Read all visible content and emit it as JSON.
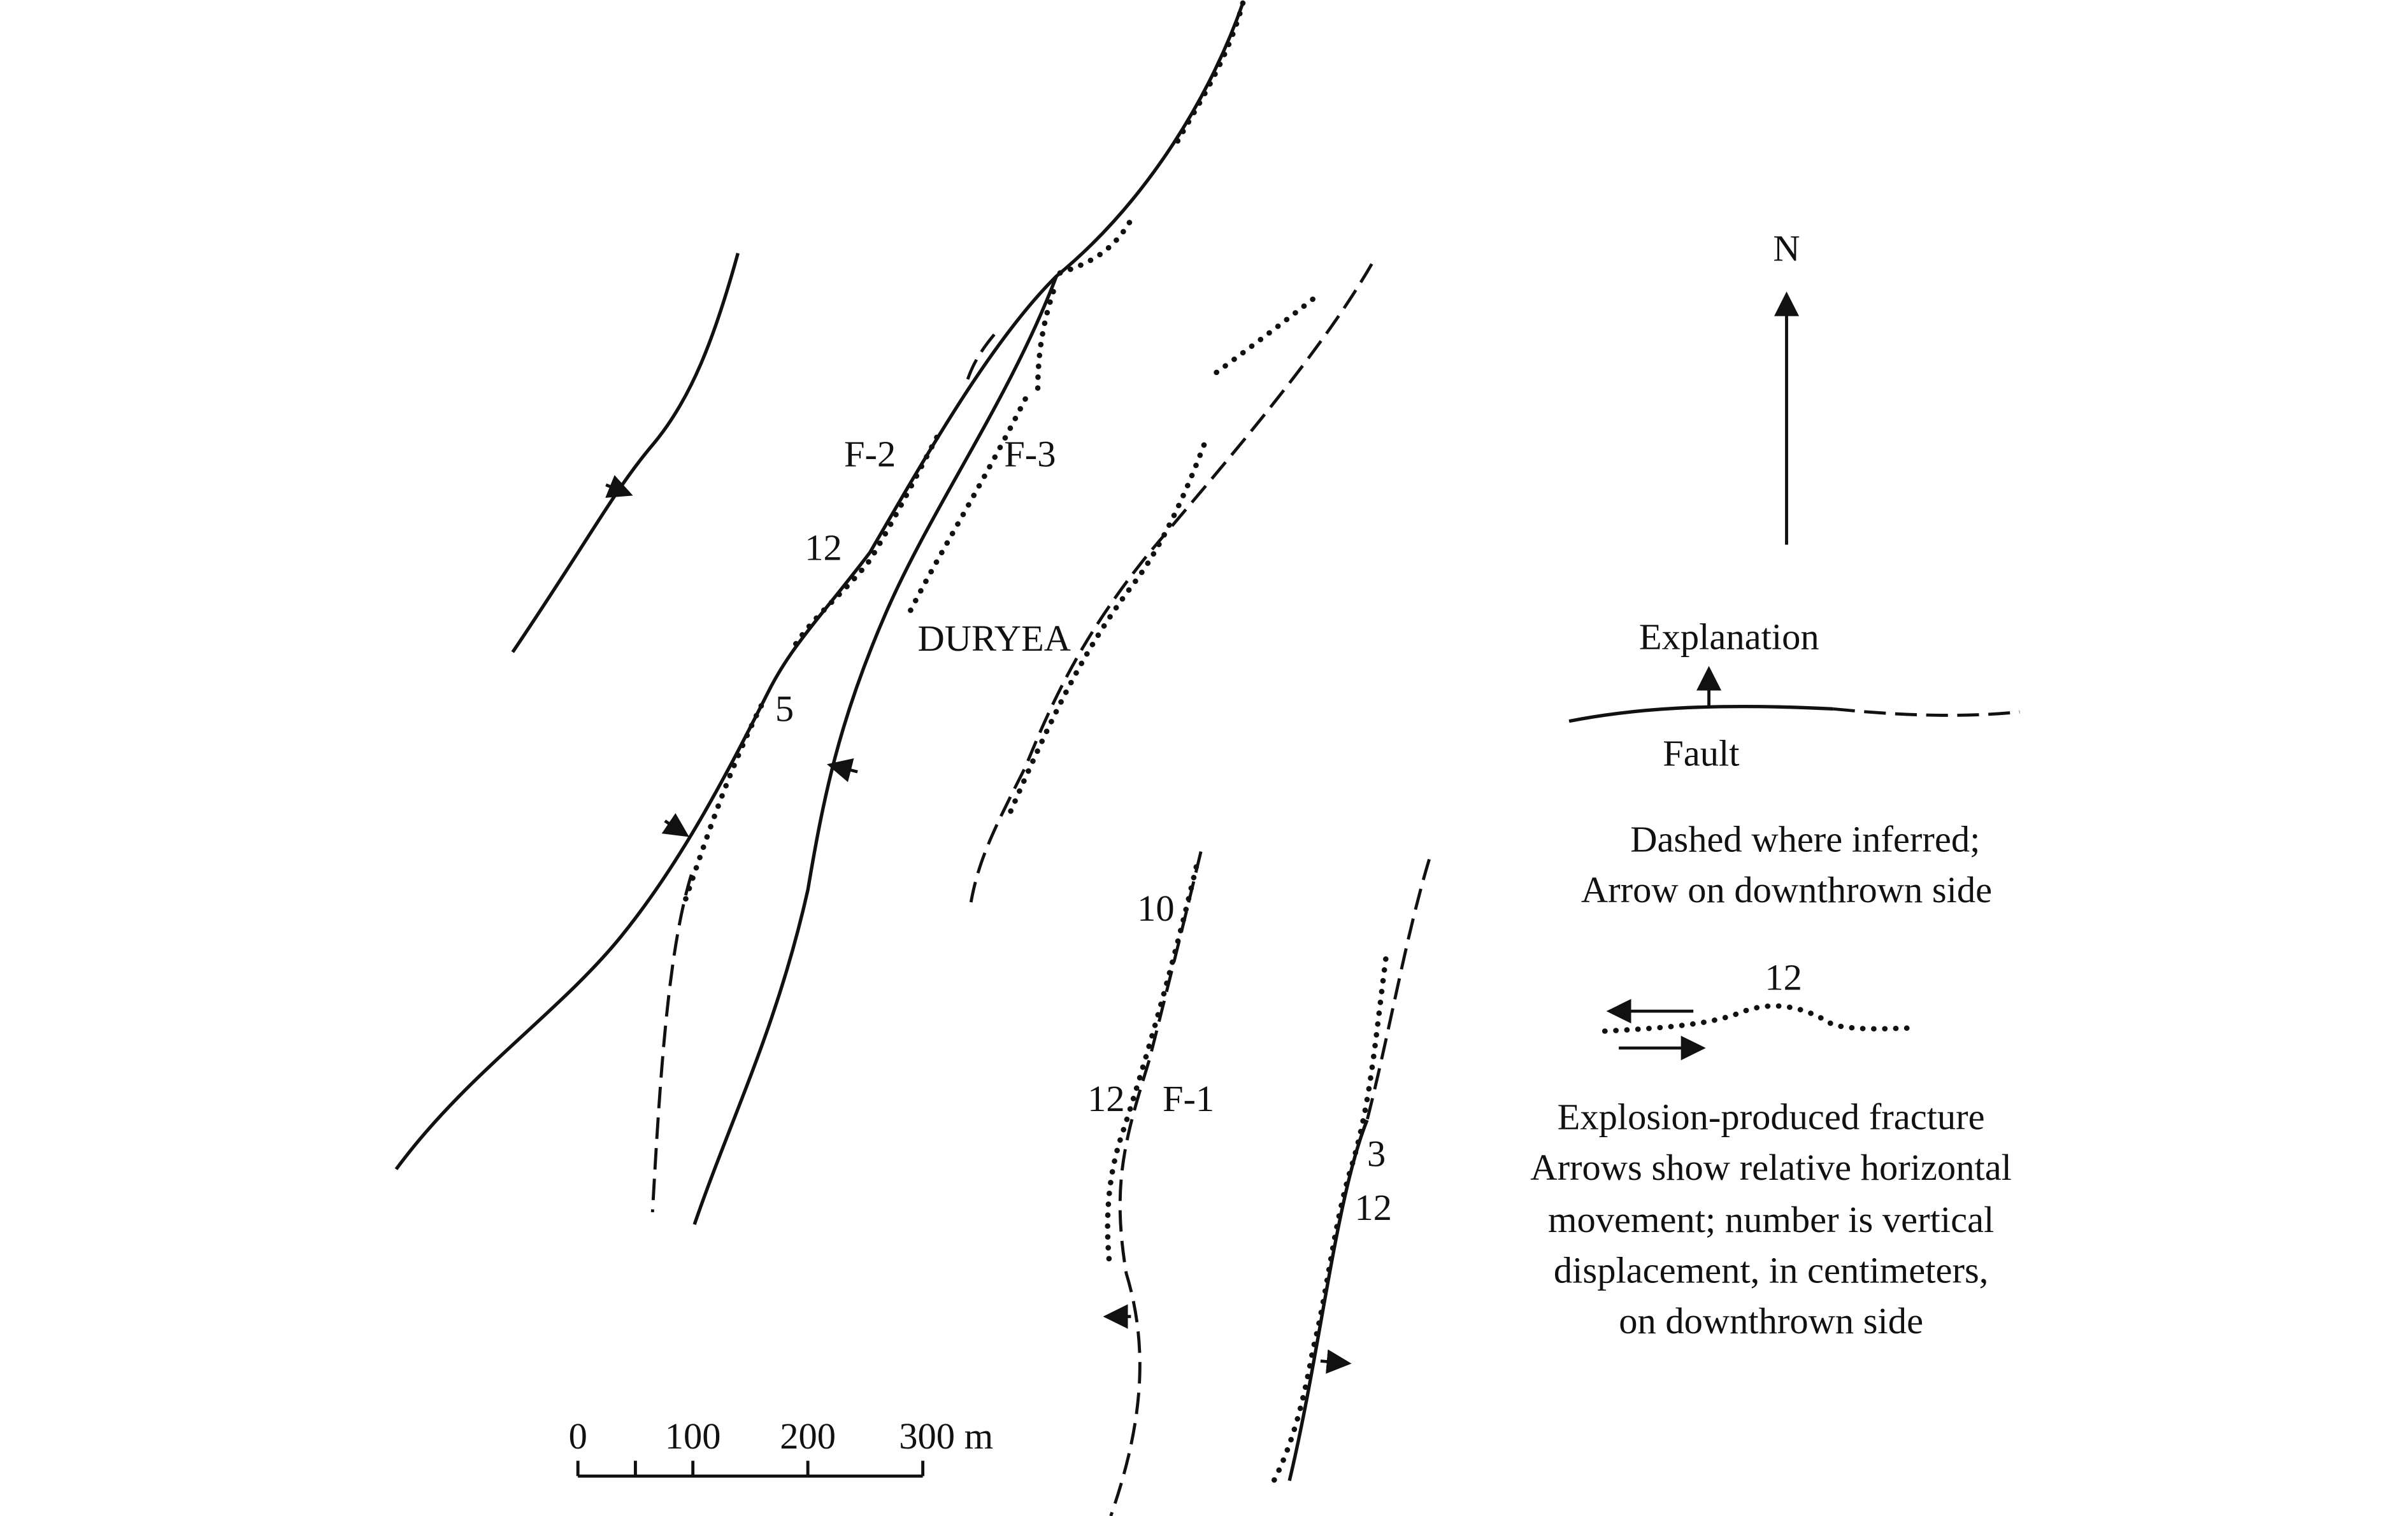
{
  "north": "N",
  "map_labels": [
    "F-2",
    "F-3",
    "12",
    "DURYEA",
    "5",
    "10",
    "12",
    "F-1",
    "3",
    "12"
  ],
  "legend": {
    "title": "Explanation",
    "fault_label": "Fault",
    "fault_note": [
      "Dashed where inferred;",
      "Arrow on downthrown side"
    ],
    "fracture_number": "12",
    "fracture_note": [
      "Explosion-produced fracture",
      "Arrows show relative horizontal",
      "movement; number is vertical",
      "displacement, in centimeters,",
      "on downthrown side"
    ]
  },
  "scale_bar": {
    "labels": [
      "0",
      "100",
      "200",
      "300 m"
    ]
  }
}
